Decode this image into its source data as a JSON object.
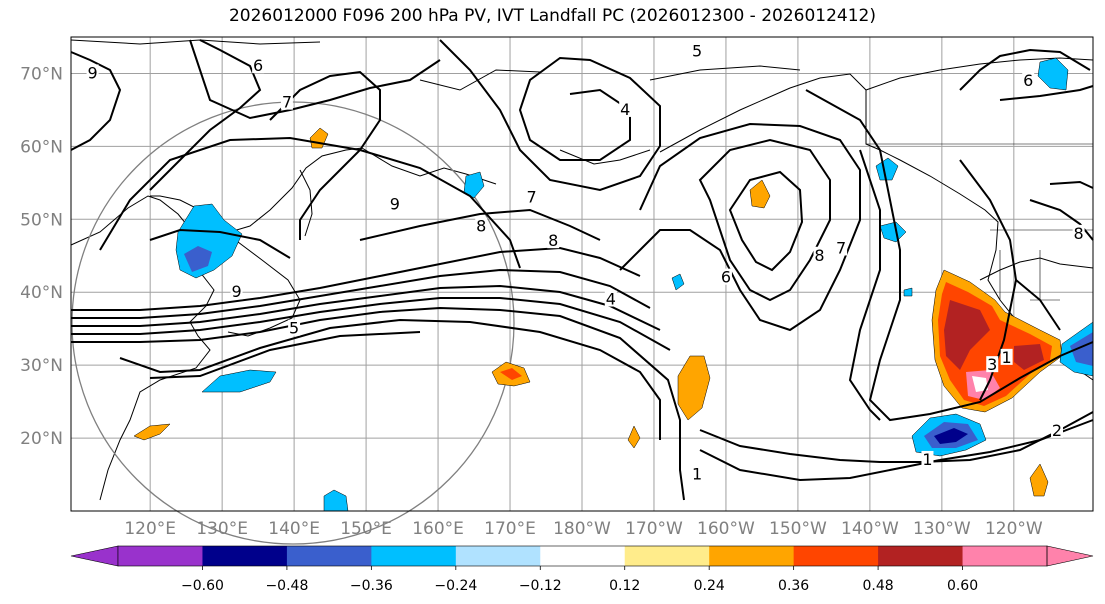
{
  "title": "2026012000 F096 200 hPa PV, IVT Landfall PC (2026012300 - 2026012412)",
  "map": {
    "lat_labels": [
      "20°N",
      "30°N",
      "40°N",
      "50°N",
      "60°N",
      "70°N"
    ],
    "lon_labels": [
      "120°E",
      "130°E",
      "140°E",
      "150°E",
      "160°E",
      "170°E",
      "180°W",
      "170°W",
      "160°W",
      "150°W",
      "140°W",
      "130°W",
      "120°W"
    ],
    "lat_range": [
      10,
      75
    ],
    "lon_range": [
      109,
      251
    ],
    "contour_labels": [
      {
        "text": "6",
        "lon": 135,
        "lat": 71
      },
      {
        "text": "9",
        "lon": 112,
        "lat": 70
      },
      {
        "text": "7",
        "lon": 139,
        "lat": 66
      },
      {
        "text": "5",
        "lon": 196,
        "lat": 73
      },
      {
        "text": "4",
        "lon": 186,
        "lat": 65
      },
      {
        "text": "7",
        "lon": 173,
        "lat": 53
      },
      {
        "text": "9",
        "lon": 154,
        "lat": 52
      },
      {
        "text": "8",
        "lon": 176,
        "lat": 47
      },
      {
        "text": "8",
        "lon": 166,
        "lat": 49
      },
      {
        "text": "9",
        "lon": 132,
        "lat": 40
      },
      {
        "text": "5",
        "lon": 140,
        "lat": 35
      },
      {
        "text": "4",
        "lon": 184,
        "lat": 39
      },
      {
        "text": "8",
        "lon": 213,
        "lat": 45
      },
      {
        "text": "7",
        "lon": 216,
        "lat": 46
      },
      {
        "text": "6",
        "lon": 200,
        "lat": 42
      },
      {
        "text": "1",
        "lon": 239,
        "lat": 31
      },
      {
        "text": "3",
        "lon": 237,
        "lat": 30
      },
      {
        "text": "2",
        "lon": 246,
        "lat": 21
      },
      {
        "text": "1",
        "lon": 228,
        "lat": 17
      },
      {
        "text": "1",
        "lon": 196,
        "lat": 15
      },
      {
        "text": "6",
        "lon": 242,
        "lat": 69
      },
      {
        "text": "8",
        "lon": 249,
        "lat": 48
      }
    ]
  },
  "colorbar": {
    "ticks": [
      "−0.60",
      "−0.48",
      "−0.36",
      "−0.24",
      "−0.12",
      "0.12",
      "0.24",
      "0.36",
      "0.48",
      "0.60"
    ],
    "colors": [
      "#9932cc",
      "#00008b",
      "#3a5fcd",
      "#00bfff",
      "#b0e2ff",
      "#ffffff",
      "#ffec8b",
      "#ffa500",
      "#ff4500",
      "#b22222",
      "#ff82ab",
      "#ff82ab"
    ]
  },
  "shading": [
    {
      "name": "pc-pos-anomaly-ne-pacific",
      "bin": "0.48"
    },
    {
      "name": "pc-neg-anomaly-japan-sea",
      "bin": "-0.36"
    },
    {
      "name": "pc-neg-anomaly-sw-california",
      "bin": "-0.48"
    }
  ]
}
